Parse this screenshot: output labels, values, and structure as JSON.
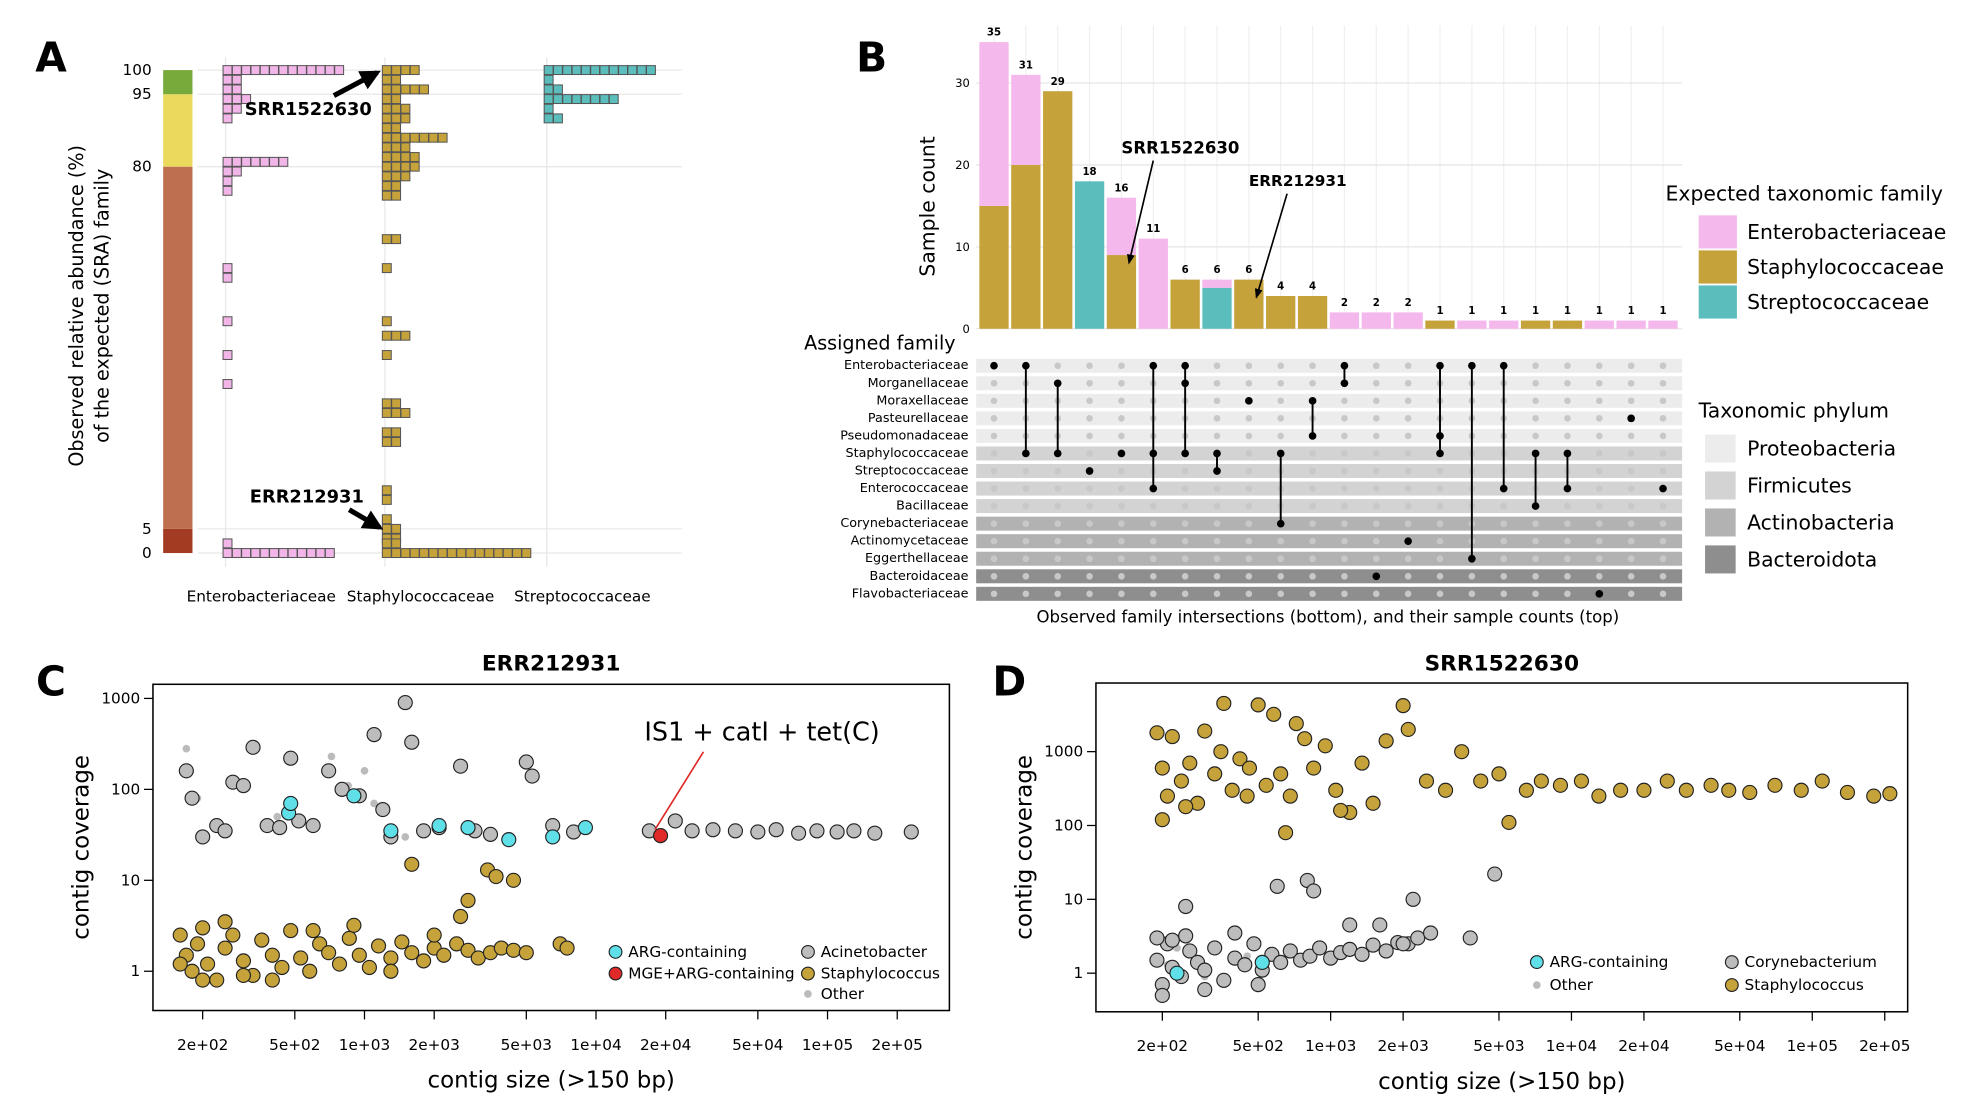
{
  "chart_data": [
    {
      "type": "dot-histogram",
      "panel_label": "A",
      "ylabel": [
        "Observed relative abundance (%)",
        "of the expected (SRA) family"
      ],
      "ylim": [
        0,
        100
      ],
      "yticks": [
        0,
        5,
        80,
        95,
        100
      ],
      "bands": [
        {
          "from": 0,
          "to": 5,
          "color": "#a33a22"
        },
        {
          "from": 5,
          "to": 80,
          "color": "#bd6f50"
        },
        {
          "from": 80,
          "to": 95,
          "color": "#ead95c"
        },
        {
          "from": 95,
          "to": 100,
          "color": "#77aa3a"
        }
      ],
      "categories": [
        "Enterobacteriaceae",
        "Staphylococcaceae",
        "Streptococcaceae"
      ],
      "series": [
        {
          "name": "Enterobacteriaceae",
          "color": "#f2b5e8",
          "y": [
            100,
            98,
            96,
            94,
            92,
            90,
            81,
            79,
            77,
            75,
            59,
            57,
            48,
            41,
            35,
            2,
            0
          ],
          "counts": [
            13,
            2,
            2,
            3,
            2,
            1,
            7,
            2,
            1,
            1,
            1,
            1,
            1,
            1,
            1,
            1,
            12
          ]
        },
        {
          "name": "Staphylococcaceae",
          "color": "#c5a23a",
          "y": [
            100,
            98,
            96,
            94,
            92,
            90,
            88,
            86,
            84,
            82,
            80,
            78,
            76,
            74,
            65,
            59,
            48,
            45,
            41,
            31,
            29,
            25,
            23,
            13,
            11,
            7,
            5,
            3,
            2,
            0
          ],
          "counts": [
            4,
            2,
            5,
            2,
            3,
            3,
            2,
            7,
            3,
            4,
            4,
            3,
            2,
            2,
            2,
            1,
            1,
            3,
            1,
            2,
            3,
            2,
            2,
            1,
            1,
            1,
            2,
            2,
            2,
            16
          ]
        },
        {
          "name": "Streptococcaceae",
          "color": "#5cbdbd",
          "y": [
            100,
            98,
            96,
            94,
            92,
            90
          ],
          "counts": [
            12,
            1,
            2,
            8,
            1,
            2
          ]
        }
      ],
      "annotations": [
        "SRR1522630",
        "ERR212931"
      ]
    },
    {
      "type": "upset",
      "panel_label": "B",
      "ylabel": "Sample count",
      "matrix_title": "Assigned family",
      "xlabel": "Observed family intersections (bottom), and their sample counts (top)",
      "legend_title": "Expected taxonomic family",
      "phylum_legend_title": "Taxonomic phylum",
      "ylim": [
        0,
        35
      ],
      "yticks": [
        0,
        10,
        20,
        30
      ],
      "series": [
        {
          "name": "Enterobacteriaceae",
          "color": "#f5b8ec",
          "values": [
            20,
            11,
            0,
            0,
            7,
            11,
            0,
            1,
            0,
            0,
            0,
            2,
            2,
            2,
            0,
            1,
            1,
            0,
            0,
            1,
            1,
            1
          ]
        },
        {
          "name": "Staphylococcaceae",
          "color": "#c5a23a",
          "values": [
            15,
            20,
            29,
            0,
            9,
            0,
            6,
            0,
            6,
            4,
            4,
            0,
            0,
            0,
            1,
            0,
            0,
            1,
            1,
            0,
            0,
            0
          ]
        },
        {
          "name": "Streptococcaceae",
          "color": "#5cbdbd",
          "values": [
            0,
            0,
            0,
            18,
            0,
            0,
            0,
            5,
            0,
            0,
            0,
            0,
            0,
            0,
            0,
            0,
            0,
            0,
            0,
            0,
            0,
            0
          ]
        }
      ],
      "totals": [
        35,
        31,
        29,
        18,
        16,
        11,
        6,
        6,
        6,
        4,
        4,
        2,
        2,
        2,
        1,
        1,
        1,
        1,
        1,
        1,
        1,
        1
      ],
      "phyla": [
        {
          "name": "Proteobacteria",
          "color": "#ececec"
        },
        {
          "name": "Firmicutes",
          "color": "#d3d3d3"
        },
        {
          "name": "Actinobacteria",
          "color": "#b2b2b2"
        },
        {
          "name": "Bacteroidota",
          "color": "#8e8e8e"
        }
      ],
      "sets": [
        {
          "name": "Enterobacteriaceae",
          "phylum": 0
        },
        {
          "name": "Morganellaceae",
          "phylum": 0
        },
        {
          "name": "Moraxellaceae",
          "phylum": 0
        },
        {
          "name": "Pasteurellaceae",
          "phylum": 0
        },
        {
          "name": "Pseudomonadaceae",
          "phylum": 0
        },
        {
          "name": "Staphylococcaceae",
          "phylum": 1
        },
        {
          "name": "Streptococcaceae",
          "phylum": 1
        },
        {
          "name": "Enterococcaceae",
          "phylum": 1
        },
        {
          "name": "Bacillaceae",
          "phylum": 1
        },
        {
          "name": "Corynebacteriaceae",
          "phylum": 2
        },
        {
          "name": "Actinomycetaceae",
          "phylum": 2
        },
        {
          "name": "Eggerthellaceae",
          "phylum": 2
        },
        {
          "name": "Bacteroidaceae",
          "phylum": 3
        },
        {
          "name": "Flavobacteriaceae",
          "phylum": 3
        }
      ],
      "intersections": [
        [
          0
        ],
        [
          0,
          5
        ],
        [
          1,
          5
        ],
        [
          6
        ],
        [
          5
        ],
        [
          0,
          5,
          7
        ],
        [
          0,
          1,
          5
        ],
        [
          5,
          6
        ],
        [
          2
        ],
        [
          5,
          9
        ],
        [
          2,
          4
        ],
        [
          0,
          1
        ],
        [
          12
        ],
        [
          10
        ],
        [
          0,
          4,
          5
        ],
        [
          0,
          11
        ],
        [
          0,
          7
        ],
        [
          5,
          8
        ],
        [
          5,
          7
        ],
        [
          13
        ],
        [
          3
        ],
        [
          7
        ]
      ],
      "annotations": [
        "SRR1522630",
        "ERR212931"
      ]
    },
    {
      "type": "scatter",
      "panel_label": "C",
      "title": "ERR212931",
      "xlabel": "contig size (>150 bp)",
      "ylabel": "contig coverage",
      "xscale": "log",
      "yscale": "log",
      "xlim": [
        122,
        336000
      ],
      "ylim": [
        0.37,
        1430
      ],
      "xticks": [
        {
          "value": 200,
          "label": "2e+02"
        },
        {
          "value": 500,
          "label": "5e+02"
        },
        {
          "value": 1000,
          "label": "1e+03"
        },
        {
          "value": 2000,
          "label": "2e+03"
        },
        {
          "value": 5000,
          "label": "5e+03"
        },
        {
          "value": 10000,
          "label": "1e+04"
        },
        {
          "value": 20000,
          "label": "2e+04"
        },
        {
          "value": 50000,
          "label": "5e+04"
        },
        {
          "value": 100000,
          "label": "1e+05"
        },
        {
          "value": 200000,
          "label": "2e+05"
        }
      ],
      "yticks": [
        1,
        10,
        100,
        1000
      ],
      "annotation": "IS1 + catI + tet(C)",
      "series": [
        {
          "name": "ARG-containing",
          "color": "#5fe0e8",
          "marker": "circle",
          "x": [
            470,
            480,
            900,
            1300,
            2100,
            2800,
            4200,
            6500,
            9000
          ],
          "values": [
            55,
            70,
            85,
            35,
            40,
            38,
            28,
            30,
            38
          ]
        },
        {
          "name": "MGE+ARG-containing",
          "color": "#e02a2a",
          "marker": "circle",
          "x": [
            19000
          ],
          "values": [
            31
          ]
        },
        {
          "name": "Acinetobacter",
          "color": "#bdbdbd",
          "marker": "circle",
          "x": [
            170,
            180,
            200,
            230,
            250,
            270,
            300,
            330,
            380,
            430,
            480,
            520,
            600,
            700,
            800,
            950,
            1100,
            1200,
            1300,
            1500,
            1600,
            1800,
            2100,
            2600,
            3000,
            3500,
            5000,
            5300,
            6500,
            8000,
            17000,
            22000,
            26000,
            32000,
            40000,
            50000,
            60000,
            75000,
            90000,
            110000,
            130000,
            160000,
            230000
          ],
          "values": [
            160,
            80,
            30,
            40,
            35,
            120,
            110,
            290,
            40,
            38,
            220,
            45,
            40,
            160,
            100,
            85,
            400,
            60,
            30,
            900,
            330,
            35,
            38,
            180,
            35,
            32,
            200,
            140,
            40,
            34,
            35,
            45,
            35,
            36,
            35,
            34,
            36,
            33,
            35,
            34,
            35,
            33,
            34
          ]
        },
        {
          "name": "Staphylococcus",
          "color": "#c5a23a",
          "marker": "circle",
          "x": [
            160,
            170,
            180,
            190,
            200,
            210,
            230,
            250,
            270,
            300,
            330,
            360,
            400,
            440,
            480,
            530,
            580,
            640,
            700,
            780,
            860,
            950,
            1050,
            1150,
            1300,
            1450,
            1600,
            1800,
            2000,
            2200,
            2500,
            2800,
            3100,
            3500,
            3900,
            4400,
            5000,
            7000,
            7500,
            1600,
            2600,
            2800,
            3400,
            3700,
            4400,
            160,
            200,
            250,
            300,
            400,
            600,
            900,
            1300,
            2000
          ],
          "values": [
            2.5,
            1.5,
            1,
            2,
            3,
            1.2,
            0.8,
            1.8,
            2.5,
            1.3,
            0.9,
            2.2,
            1.5,
            1.1,
            2.8,
            1.4,
            1,
            2,
            1.6,
            1.2,
            2.3,
            1.5,
            1.1,
            1.9,
            1.4,
            2.1,
            1.6,
            1.3,
            1.8,
            1.5,
            2,
            1.7,
            1.4,
            1.6,
            1.8,
            1.7,
            1.6,
            2,
            1.8,
            15,
            4,
            6,
            13,
            11,
            10,
            1.2,
            0.8,
            3.5,
            0.9,
            0.8,
            2.8,
            3.2,
            1,
            2.5
          ]
        },
        {
          "name": "Other",
          "color": "#bbbbbb",
          "marker": "point",
          "x": [
            170,
            190,
            420,
            720,
            850,
            1000,
            1500,
            3000,
            1100
          ],
          "values": [
            280,
            80,
            50,
            230,
            110,
            160,
            30,
            35,
            70
          ]
        }
      ]
    },
    {
      "type": "scatter",
      "panel_label": "D",
      "title": "SRR1522630",
      "xlabel": "contig size (>150 bp)",
      "ylabel": "contig coverage",
      "xscale": "log",
      "yscale": "log",
      "xlim": [
        106,
        249000
      ],
      "ylim": [
        0.3,
        8500
      ],
      "xticks": [
        {
          "value": 200,
          "label": "2e+02"
        },
        {
          "value": 500,
          "label": "5e+02"
        },
        {
          "value": 1000,
          "label": "1e+03"
        },
        {
          "value": 2000,
          "label": "2e+03"
        },
        {
          "value": 5000,
          "label": "5e+03"
        },
        {
          "value": 10000,
          "label": "1e+04"
        },
        {
          "value": 20000,
          "label": "2e+04"
        },
        {
          "value": 50000,
          "label": "5e+04"
        },
        {
          "value": 100000,
          "label": "1e+05"
        },
        {
          "value": 200000,
          "label": "2e+05"
        }
      ],
      "yticks": [
        1,
        10,
        100,
        1000
      ],
      "series": [
        {
          "name": "ARG-containing",
          "color": "#5fe0e8",
          "marker": "circle",
          "x": [
            230,
            520
          ],
          "values": [
            1,
            1.4
          ]
        },
        {
          "name": "Staphylococcus",
          "color": "#c5a23a",
          "marker": "circle",
          "x": [
            190,
            200,
            210,
            220,
            240,
            260,
            280,
            300,
            330,
            360,
            390,
            420,
            460,
            500,
            540,
            580,
            620,
            680,
            720,
            780,
            850,
            950,
            1050,
            1200,
            1350,
            1500,
            1700,
            2000,
            2100,
            2500,
            3000,
            3500,
            4200,
            5000,
            5500,
            6500,
            7500,
            9000,
            11000,
            13000,
            16000,
            20000,
            25000,
            30000,
            38000,
            45000,
            55000,
            70000,
            90000,
            110000,
            140000,
            180000,
            210000,
            200,
            250,
            350,
            450,
            650,
            1100
          ],
          "values": [
            1800,
            600,
            250,
            1600,
            400,
            700,
            200,
            1900,
            500,
            4500,
            300,
            800,
            600,
            4300,
            350,
            3200,
            500,
            250,
            2400,
            1500,
            600,
            1200,
            300,
            150,
            700,
            200,
            1400,
            4200,
            2000,
            400,
            300,
            1000,
            400,
            500,
            110,
            300,
            400,
            350,
            400,
            250,
            300,
            300,
            400,
            300,
            350,
            300,
            280,
            350,
            300,
            400,
            280,
            250,
            270,
            120,
            180,
            1000,
            250,
            80,
            160
          ]
        },
        {
          "name": "Corynebacterium",
          "color": "#bdbdbd",
          "marker": "circle",
          "x": [
            190,
            200,
            210,
            220,
            240,
            260,
            280,
            300,
            330,
            360,
            400,
            440,
            480,
            520,
            570,
            620,
            680,
            750,
            820,
            900,
            1000,
            1100,
            1200,
            1350,
            1500,
            1700,
            1900,
            2100,
            2300,
            2600,
            3800,
            4800,
            800,
            850,
            600,
            2200,
            1200,
            250,
            1600,
            2000,
            190,
            200,
            220,
            250,
            300,
            400,
            500
          ],
          "values": [
            1.5,
            0.7,
            2.5,
            1.2,
            0.9,
            2,
            1.4,
            1.1,
            2.2,
            0.8,
            1.6,
            1.3,
            2.5,
            1.1,
            1.8,
            1.4,
            2,
            1.5,
            1.7,
            2.2,
            1.6,
            1.9,
            2.1,
            1.8,
            2.4,
            2,
            2.6,
            2.5,
            3,
            3.5,
            3,
            22,
            18,
            13,
            15,
            10,
            4.5,
            8,
            4.5,
            2.5,
            3,
            0.5,
            2.8,
            3.2,
            0.6,
            3.5,
            0.7
          ]
        },
        {
          "name": "Other",
          "color": "#bbbbbb",
          "marker": "point",
          "x": [
            200,
            210,
            230,
            300,
            450
          ],
          "values": [
            0.6,
            1.3,
            2.2,
            0.9,
            1.7
          ]
        }
      ]
    }
  ]
}
